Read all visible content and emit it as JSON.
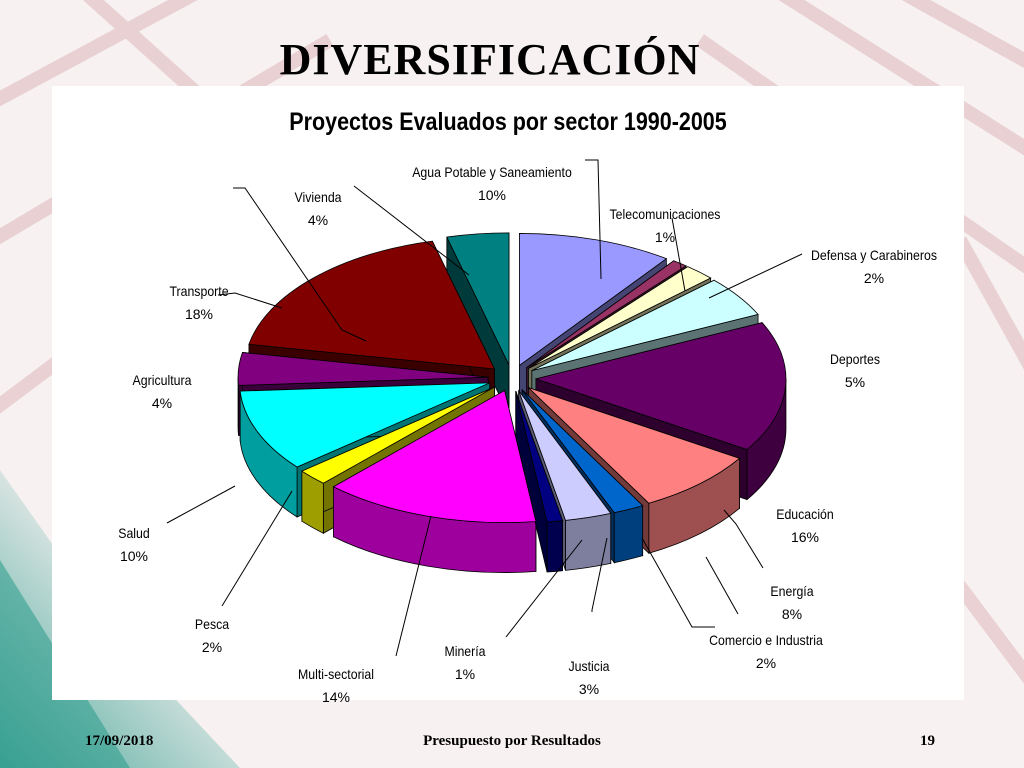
{
  "slide": {
    "title": "DIVERSIFICACIÓN",
    "footer_date": "17/09/2018",
    "footer_center": "Presupuesto por Resultados",
    "page_number": "19"
  },
  "chart_data": {
    "type": "pie",
    "three_d": true,
    "title": "Proyectos Evaluados por sector 1990-2005",
    "slices": [
      {
        "label": "Agua Potable y Saneamiento",
        "value": 10,
        "pct_label": "10%",
        "color": "#9999FF"
      },
      {
        "label": "Telecomunicaciones",
        "value": 1,
        "pct_label": "1%",
        "color": "#993366"
      },
      {
        "label": "Defensa y Carabineros",
        "value": 2,
        "pct_label": "2%",
        "color": "#FFFFCC"
      },
      {
        "label": "Deportes",
        "value": 5,
        "pct_label": "5%",
        "color": "#CCFFFF"
      },
      {
        "label": "Educación",
        "value": 16,
        "pct_label": "16%",
        "color": "#660066"
      },
      {
        "label": "Energía",
        "value": 8,
        "pct_label": "8%",
        "color": "#FF8080"
      },
      {
        "label": "Comercio e Industria",
        "value": 2,
        "pct_label": "2%",
        "color": "#0066CC"
      },
      {
        "label": "Justicia",
        "value": 3,
        "pct_label": "3%",
        "color": "#CCCCFF"
      },
      {
        "label": "Minería",
        "value": 1,
        "pct_label": "1%",
        "color": "#000080"
      },
      {
        "label": "Multi-sectorial",
        "value": 14,
        "pct_label": "14%",
        "color": "#FF00FF"
      },
      {
        "label": "Pesca",
        "value": 2,
        "pct_label": "2%",
        "color": "#FFFF00"
      },
      {
        "label": "Salud",
        "value": 10,
        "pct_label": "10%",
        "color": "#00FFFF"
      },
      {
        "label": "Agricultura",
        "value": 4,
        "pct_label": "4%",
        "color": "#800080"
      },
      {
        "label": "Transporte",
        "value": 18,
        "pct_label": "18%",
        "color": "#800000"
      },
      {
        "label": "Vivienda",
        "value": 4,
        "pct_label": "4%",
        "color": "#008080"
      }
    ]
  }
}
